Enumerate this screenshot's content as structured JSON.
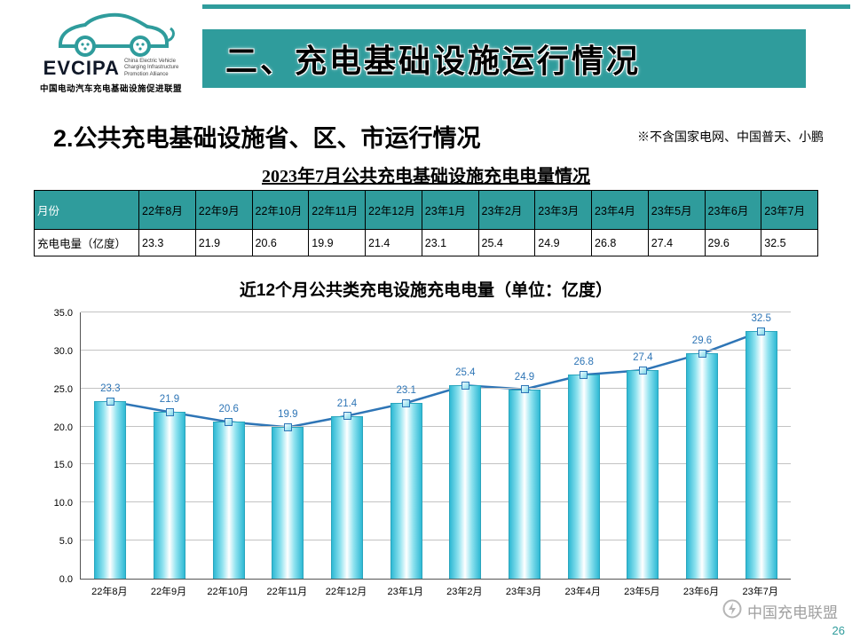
{
  "banner": {
    "title": "二、充电基础设施运行情况"
  },
  "logo": {
    "acronym": "EVCIPA",
    "en_line1": "China Electric Vehicle",
    "en_line2": "Charging Infrastructure",
    "en_line3": "Promotion Alliance",
    "cn": "中国电动汽车充电基础设施促进联盟"
  },
  "subtitle": {
    "text": "2.公共充电基础设施省、区、市运行情况"
  },
  "note": {
    "text": "※不含国家电网、中国普天、小鹏"
  },
  "table": {
    "title": "2023年7月公共充电基础设施充电电量情况",
    "row1_header": "月份",
    "row2_header": "充电电量（亿度）"
  },
  "chart_data": {
    "type": "bar+line",
    "title": "近12个月公共类充电设施充电电量（单位：亿度）",
    "categories": [
      "22年8月",
      "22年9月",
      "22年10月",
      "22年11月",
      "22年12月",
      "23年1月",
      "23年2月",
      "23年3月",
      "23年4月",
      "23年5月",
      "23年6月",
      "23年7月"
    ],
    "values": [
      23.3,
      21.9,
      20.6,
      19.9,
      21.4,
      23.1,
      25.4,
      24.9,
      26.8,
      27.4,
      29.6,
      32.5
    ],
    "ylabel": "",
    "xlabel": "",
    "ylim": [
      0,
      35
    ],
    "ytick_step": 5,
    "grid": true,
    "bar_color": "#4fc8dc",
    "line_color": "#2E75B6",
    "label_color": "#2E75B6"
  },
  "footer": {
    "watermark_text": "中国充电联盟",
    "page_number": "26"
  },
  "colors": {
    "accent_teal": "#2f9c9c"
  }
}
